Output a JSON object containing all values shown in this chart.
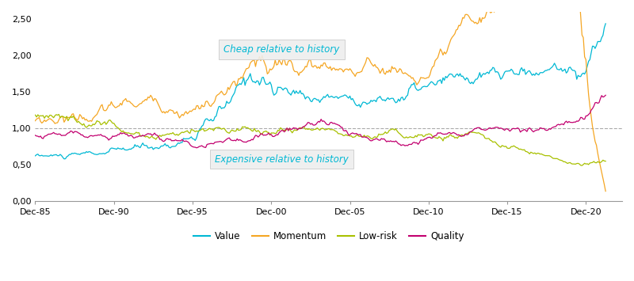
{
  "ylim": [
    0.0,
    2.6
  ],
  "yticks": [
    0.0,
    0.5,
    1.0,
    1.5,
    2.0,
    2.5
  ],
  "ytick_labels": [
    "0,00",
    "0,50",
    "1,00",
    "1,50",
    "2,00",
    "2,50"
  ],
  "xlim": [
    1985.0,
    2022.3
  ],
  "xtick_years": [
    1985,
    1990,
    1995,
    2000,
    2005,
    2010,
    2015,
    2020
  ],
  "xtick_labels": [
    "Dec-85",
    "Dec-90",
    "Dec-95",
    "Dec-00",
    "Dec-05",
    "Dec-10",
    "Dec-15",
    "Dec-20"
  ],
  "hline_y": 1.0,
  "hline_color": "#aaaaaa",
  "hline_style": "--",
  "cheap_label": "Cheap relative to history",
  "expensive_label": "Expensive relative to history",
  "colors": {
    "Value": "#00B8D4",
    "Momentum": "#F5A623",
    "Low-risk": "#A8C000",
    "Quality": "#C2006F"
  },
  "background_color": "#ffffff",
  "annotation_color": "#00B8D4"
}
